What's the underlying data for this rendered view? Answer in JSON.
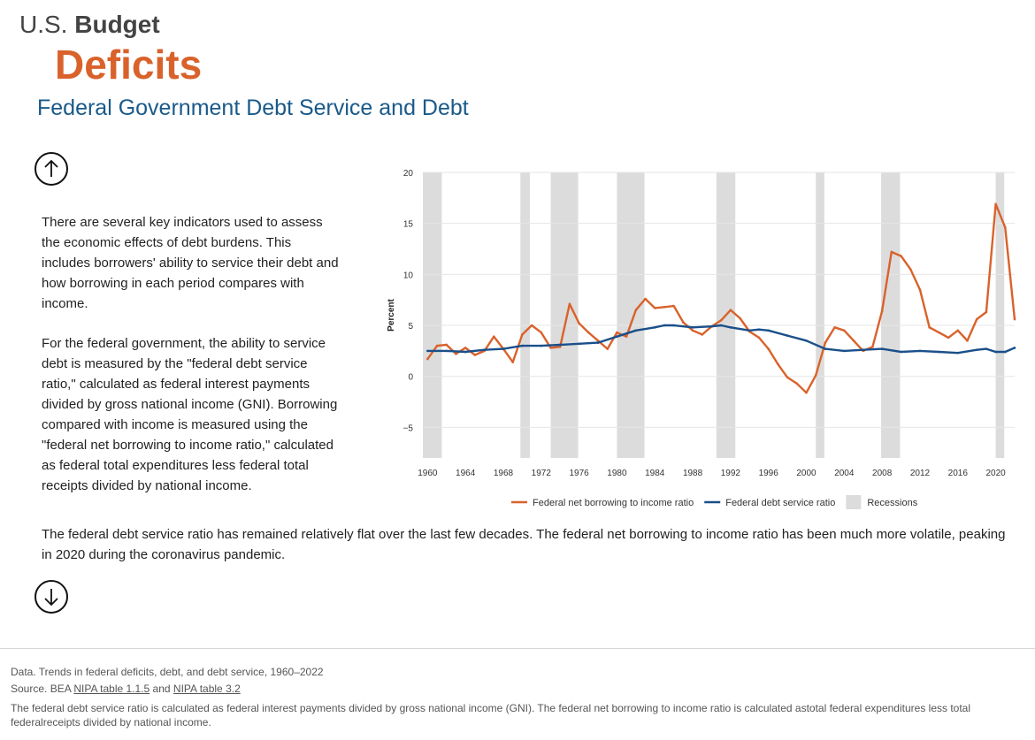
{
  "header": {
    "brand_prefix": "U.S.",
    "brand_name": "Budget",
    "topic": "Deficits",
    "title": "Federal Government Debt Service and Debt"
  },
  "body": {
    "paragraph1": "There are several key indicators used to assess the economic effects of debt burdens. This includes borrowers' ability to service their debt and how borrowing in each period compares with income.",
    "paragraph2": "For the federal government, the ability to service debt is measured by the \"federal debt service ratio,\" calculated as federal interest payments divided by gross national income (GNI). Borrowing compared with income is measured using the \"federal net borrowing to income ratio,\" calculated as federal total expenditures less federal total receipts divided by national income.",
    "paragraph3": "The federal debt service ratio has remained relatively flat over the last few decades. The federal net borrowing to income ratio has been much more volatile, peaking in 2020 during the coronavirus pandemic."
  },
  "nav": {
    "up_icon": "arrow-up-circle-icon",
    "down_icon": "arrow-down-circle-icon"
  },
  "footer": {
    "data_line": "Data. Trends in federal deficits, debt, and debt service, 1960–2022",
    "source_prefix": "Source. BEA ",
    "source_link1": "NIPA table 1.1.5",
    "source_and": " and ",
    "source_link2": "NIPA table 3.2",
    "note": "The federal debt service ratio is calculated as federal interest payments divided by gross national income (GNI). The federal net borrowing to income ratio is calculated astotal federal expenditures less total federalreceipts divided by national income."
  },
  "chart_data": {
    "type": "line",
    "ylabel": "Percent",
    "xlabel": "",
    "ylim": [
      -8,
      20
    ],
    "xlim": [
      1959.5,
      2022
    ],
    "y_ticks": [
      20,
      15,
      10,
      5,
      0,
      -5
    ],
    "y_tick_labels": [
      "20",
      "15",
      "10",
      "5",
      "0",
      "−5"
    ],
    "x_ticks": [
      1960,
      1964,
      1968,
      1972,
      1976,
      1980,
      1984,
      1988,
      1992,
      1996,
      2000,
      2004,
      2008,
      2012,
      2016,
      2020
    ],
    "x_tick_labels": [
      "1960",
      "1964",
      "1968",
      "1972",
      "1976",
      "1980",
      "1984",
      "1988",
      "1992",
      "1996",
      "2000",
      "2004",
      "2008",
      "2012",
      "2016",
      "2020"
    ],
    "grid": "horizontal",
    "legend_position": "bottom",
    "recessions": [
      [
        1959.5,
        1961.5
      ],
      [
        1969.8,
        1970.8
      ],
      [
        1973.0,
        1975.9
      ],
      [
        1980.0,
        1982.9
      ],
      [
        1990.5,
        1992.5
      ],
      [
        2001.0,
        2001.9
      ],
      [
        2007.9,
        2009.9
      ],
      [
        2020.0,
        2020.9
      ]
    ],
    "series": [
      {
        "name": "Federal net borrowing to income ratio",
        "color": "#d9622b",
        "x": [
          1960,
          1961,
          1962,
          1963,
          1964,
          1965,
          1966,
          1967,
          1968,
          1969,
          1970,
          1971,
          1972,
          1973,
          1974,
          1975,
          1976,
          1977,
          1978,
          1979,
          1980,
          1981,
          1982,
          1983,
          1984,
          1985,
          1986,
          1987,
          1988,
          1989,
          1990,
          1991,
          1992,
          1993,
          1994,
          1995,
          1996,
          1997,
          1998,
          1999,
          2000,
          2001,
          2002,
          2003,
          2004,
          2005,
          2006,
          2007,
          2008,
          2009,
          2010,
          2011,
          2012,
          2013,
          2014,
          2015,
          2016,
          2017,
          2018,
          2019,
          2020,
          2021,
          2022
        ],
        "values": [
          1.7,
          3.0,
          3.1,
          2.2,
          2.8,
          2.1,
          2.5,
          3.9,
          2.7,
          1.4,
          4.1,
          5.0,
          4.3,
          2.8,
          2.9,
          7.1,
          5.2,
          4.3,
          3.5,
          2.7,
          4.3,
          3.9,
          6.5,
          7.6,
          6.7,
          6.8,
          6.9,
          5.3,
          4.5,
          4.1,
          4.9,
          5.5,
          6.5,
          5.7,
          4.4,
          3.8,
          2.7,
          1.2,
          -0.1,
          -0.7,
          -1.6,
          0.1,
          3.3,
          4.8,
          4.5,
          3.5,
          2.5,
          2.9,
          6.4,
          12.2,
          11.8,
          10.5,
          8.5,
          4.8,
          4.3,
          3.8,
          4.5,
          3.5,
          5.6,
          6.3,
          16.9,
          14.6,
          5.6
        ]
      },
      {
        "name": "Federal debt service ratio",
        "color": "#1a4f8a",
        "x": [
          1960,
          1962,
          1964,
          1966,
          1968,
          1970,
          1972,
          1974,
          1976,
          1978,
          1980,
          1982,
          1984,
          1985,
          1986,
          1988,
          1990,
          1991,
          1992,
          1994,
          1995,
          1996,
          1998,
          2000,
          2002,
          2004,
          2006,
          2008,
          2010,
          2012,
          2014,
          2016,
          2018,
          2019,
          2020,
          2021,
          2022
        ],
        "values": [
          2.5,
          2.5,
          2.4,
          2.6,
          2.7,
          3.0,
          3.0,
          3.1,
          3.2,
          3.3,
          3.9,
          4.5,
          4.8,
          5.0,
          5.0,
          4.8,
          4.9,
          5.0,
          4.8,
          4.5,
          4.6,
          4.5,
          4.0,
          3.5,
          2.7,
          2.5,
          2.6,
          2.7,
          2.4,
          2.5,
          2.4,
          2.3,
          2.6,
          2.7,
          2.4,
          2.4,
          2.8
        ]
      }
    ],
    "legend": [
      {
        "label": "Federal net borrowing to income ratio",
        "kind": "line",
        "color": "#d9622b"
      },
      {
        "label": "Federal debt service ratio",
        "kind": "line",
        "color": "#1a4f8a"
      },
      {
        "label": "Recessions",
        "kind": "box",
        "color": "#dcdcdc"
      }
    ]
  }
}
